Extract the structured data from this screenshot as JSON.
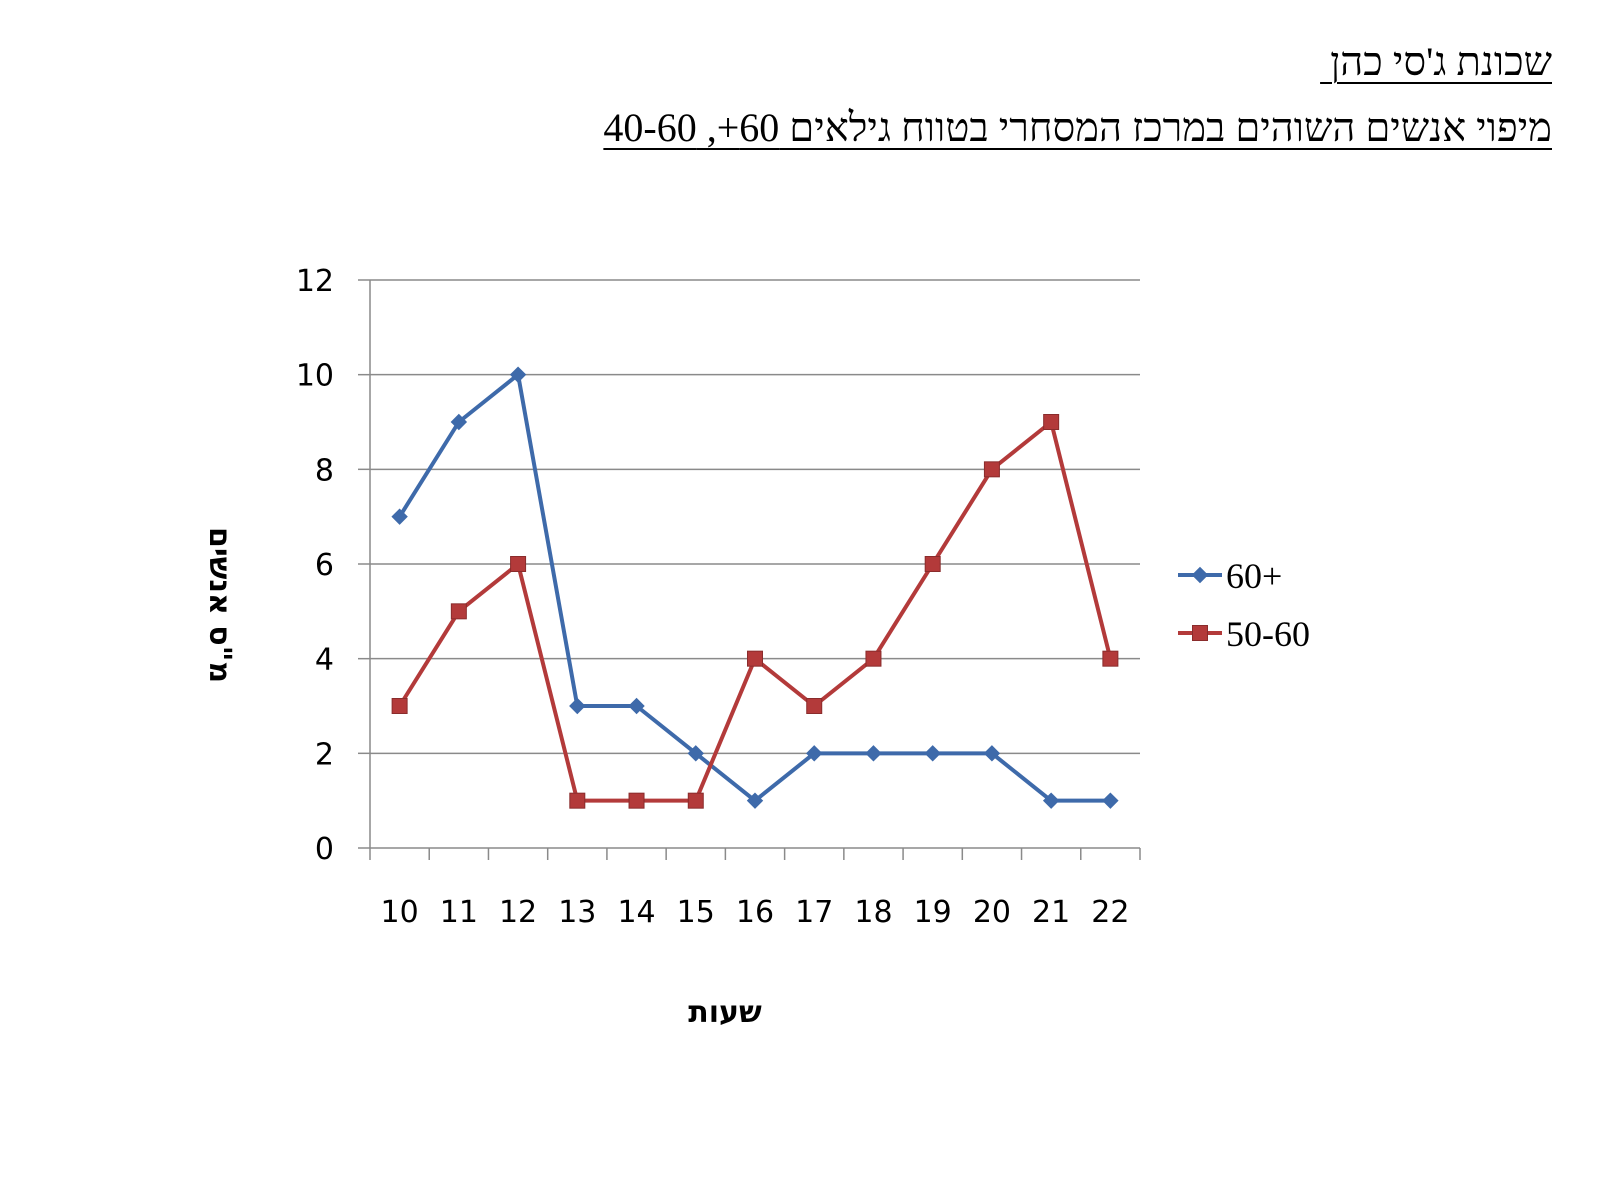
{
  "header": {
    "title_line1": "שכונת ג'סי כהן ",
    "title_line2": "מיפוי אנשים השוהים במרכז המסחרי בטווח גילאים 60+, 40-60"
  },
  "chart_data": {
    "type": "line",
    "categories": [
      "10",
      "11",
      "12",
      "13",
      "14",
      "15",
      "16",
      "17",
      "18",
      "19",
      "20",
      "21",
      "22"
    ],
    "series": [
      {
        "name": "60+",
        "values": [
          7,
          9,
          10,
          3,
          3,
          2,
          1,
          2,
          2,
          2,
          2,
          1,
          1
        ],
        "color": "#3E6AAA",
        "marker": "diamond"
      },
      {
        "name": "50-60",
        "values": [
          3,
          5,
          6,
          1,
          1,
          1,
          4,
          3,
          4,
          6,
          8,
          9,
          4
        ],
        "color": "#B33A3A",
        "marker": "square"
      }
    ],
    "xlabel": "שעות",
    "ylabel": "מ\"ס אנשים",
    "ylim": [
      0,
      12
    ],
    "yticks": [
      0,
      2,
      4,
      6,
      8,
      10,
      12
    ],
    "grid": true,
    "legend": "right"
  }
}
